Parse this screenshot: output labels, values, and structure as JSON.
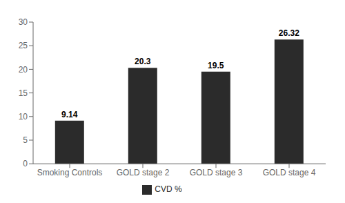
{
  "chart_data": {
    "type": "bar",
    "categories": [
      "Smoking Controls",
      "GOLD stage 2",
      "GOLD stage 3",
      "GOLD stage 4"
    ],
    "series": [
      {
        "name": "CVD %",
        "color": "#2b2b2b",
        "values": [
          9.14,
          20.3,
          19.5,
          26.32
        ]
      }
    ],
    "ylim": [
      0,
      30
    ],
    "yticks": [
      0,
      5,
      10,
      15,
      20,
      25,
      30
    ],
    "data_labels": true,
    "legend": "bottom",
    "grid": false
  }
}
